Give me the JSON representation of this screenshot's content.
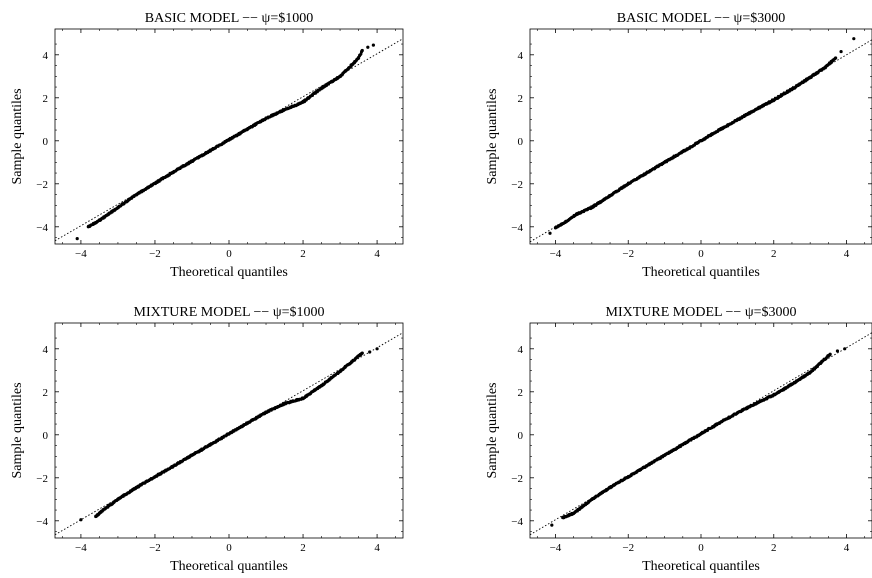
{
  "figure": {
    "background": "#ffffff",
    "point_color": "#000000",
    "reference_line_color": "#000000"
  },
  "chart_data": [
    {
      "type": "scatter",
      "title": "BASIC MODEL −− ψ=$1000",
      "xlabel": "Theoretical quantiles",
      "ylabel": "Sample quantiles",
      "xlim": [
        -4.7,
        4.7
      ],
      "ylim": [
        -4.8,
        5.2
      ],
      "xticks": [
        -4,
        -2,
        0,
        2,
        4
      ],
      "yticks": [
        -4,
        -2,
        0,
        2,
        4
      ],
      "xtick_labels": [
        "−4",
        "−2",
        "0",
        "2",
        "4"
      ],
      "ytick_labels": [
        "−4",
        "−2",
        "0",
        "2",
        "4"
      ],
      "grid": false,
      "reference_line": {
        "style": "dotted",
        "slope": 1.0,
        "intercept": 0.05
      },
      "points": [
        [
          -4.1,
          -4.55
        ],
        [
          -3.8,
          -4.0
        ],
        [
          -3.5,
          -3.7
        ],
        [
          -3.0,
          -3.1
        ],
        [
          -2.5,
          -2.5
        ],
        [
          -2.0,
          -1.98
        ],
        [
          -1.5,
          -1.45
        ],
        [
          -1.0,
          -0.95
        ],
        [
          -0.5,
          -0.45
        ],
        [
          0.0,
          0.05
        ],
        [
          0.5,
          0.55
        ],
        [
          1.0,
          1.05
        ],
        [
          1.5,
          1.45
        ],
        [
          2.0,
          1.8
        ],
        [
          2.5,
          2.45
        ],
        [
          3.0,
          3.0
        ],
        [
          3.3,
          3.5
        ],
        [
          3.5,
          3.85
        ],
        [
          3.6,
          4.2
        ],
        [
          3.75,
          4.35
        ],
        [
          3.9,
          4.45
        ]
      ]
    },
    {
      "type": "scatter",
      "title": "BASIC MODEL −− ψ=$3000",
      "xlabel": "Theoretical quantiles",
      "ylabel": "Sample quantiles",
      "xlim": [
        -4.7,
        4.7
      ],
      "ylim": [
        -4.8,
        5.2
      ],
      "xticks": [
        -4,
        -2,
        0,
        2,
        4
      ],
      "yticks": [
        -4,
        -2,
        0,
        2,
        4
      ],
      "xtick_labels": [
        "−4",
        "−2",
        "0",
        "2",
        "4"
      ],
      "ytick_labels": [
        "−4",
        "−2",
        "0",
        "2",
        "4"
      ],
      "grid": false,
      "reference_line": {
        "style": "dotted",
        "slope": 1.0,
        "intercept": 0.0
      },
      "points": [
        [
          -4.15,
          -4.3
        ],
        [
          -4.0,
          -4.05
        ],
        [
          -3.7,
          -3.75
        ],
        [
          -3.4,
          -3.4
        ],
        [
          -3.0,
          -3.1
        ],
        [
          -2.5,
          -2.55
        ],
        [
          -2.0,
          -2.0
        ],
        [
          -1.5,
          -1.5
        ],
        [
          -1.0,
          -1.0
        ],
        [
          -0.5,
          -0.5
        ],
        [
          0.0,
          0.0
        ],
        [
          0.5,
          0.5
        ],
        [
          1.0,
          0.98
        ],
        [
          1.5,
          1.45
        ],
        [
          2.0,
          1.9
        ],
        [
          2.5,
          2.4
        ],
        [
          3.0,
          2.95
        ],
        [
          3.4,
          3.4
        ],
        [
          3.7,
          3.85
        ],
        [
          3.85,
          4.15
        ],
        [
          4.2,
          4.75
        ]
      ]
    },
    {
      "type": "scatter",
      "title": "MIXTURE MODEL −− ψ=$1000",
      "xlabel": "Theoretical quantiles",
      "ylabel": "Sample quantiles",
      "xlim": [
        -4.7,
        4.7
      ],
      "ylim": [
        -4.8,
        5.2
      ],
      "xticks": [
        -4,
        -2,
        0,
        2,
        4
      ],
      "yticks": [
        -4,
        -2,
        0,
        2,
        4
      ],
      "xtick_labels": [
        "−4",
        "−2",
        "0",
        "2",
        "4"
      ],
      "ytick_labels": [
        "−4",
        "−2",
        "0",
        "2",
        "4"
      ],
      "grid": false,
      "reference_line": {
        "style": "dotted",
        "slope": 1.0,
        "intercept": 0.05
      },
      "points": [
        [
          -4.0,
          -3.95
        ],
        [
          -3.6,
          -3.8
        ],
        [
          -3.4,
          -3.5
        ],
        [
          -3.0,
          -3.0
        ],
        [
          -2.5,
          -2.45
        ],
        [
          -2.0,
          -1.95
        ],
        [
          -1.5,
          -1.45
        ],
        [
          -1.0,
          -0.95
        ],
        [
          -0.5,
          -0.45
        ],
        [
          0.0,
          0.05
        ],
        [
          0.5,
          0.55
        ],
        [
          1.0,
          1.05
        ],
        [
          1.5,
          1.45
        ],
        [
          2.0,
          1.7
        ],
        [
          2.5,
          2.3
        ],
        [
          3.0,
          2.95
        ],
        [
          3.35,
          3.45
        ],
        [
          3.6,
          3.8
        ],
        [
          3.8,
          3.85
        ],
        [
          4.0,
          4.0
        ]
      ]
    },
    {
      "type": "scatter",
      "title": "MIXTURE MODEL −− ψ=$3000",
      "xlabel": "Theoretical quantiles",
      "ylabel": "Sample quantiles",
      "xlim": [
        -4.7,
        4.7
      ],
      "ylim": [
        -4.8,
        5.2
      ],
      "xticks": [
        -4,
        -2,
        0,
        2,
        4
      ],
      "yticks": [
        -4,
        -2,
        0,
        2,
        4
      ],
      "xtick_labels": [
        "−4",
        "−2",
        "0",
        "2",
        "4"
      ],
      "ytick_labels": [
        "−4",
        "−2",
        "0",
        "2",
        "4"
      ],
      "grid": false,
      "reference_line": {
        "style": "dotted",
        "slope": 1.0,
        "intercept": 0.05
      },
      "points": [
        [
          -4.1,
          -4.2
        ],
        [
          -3.8,
          -3.85
        ],
        [
          -3.5,
          -3.65
        ],
        [
          -3.0,
          -3.0
        ],
        [
          -2.5,
          -2.45
        ],
        [
          -2.0,
          -1.95
        ],
        [
          -1.5,
          -1.45
        ],
        [
          -1.0,
          -0.95
        ],
        [
          -0.5,
          -0.45
        ],
        [
          0.0,
          0.05
        ],
        [
          0.5,
          0.55
        ],
        [
          1.0,
          1.02
        ],
        [
          1.5,
          1.45
        ],
        [
          2.0,
          1.85
        ],
        [
          2.5,
          2.35
        ],
        [
          3.0,
          2.9
        ],
        [
          3.3,
          3.35
        ],
        [
          3.55,
          3.75
        ],
        [
          3.75,
          3.9
        ],
        [
          3.95,
          4.0
        ]
      ]
    }
  ]
}
